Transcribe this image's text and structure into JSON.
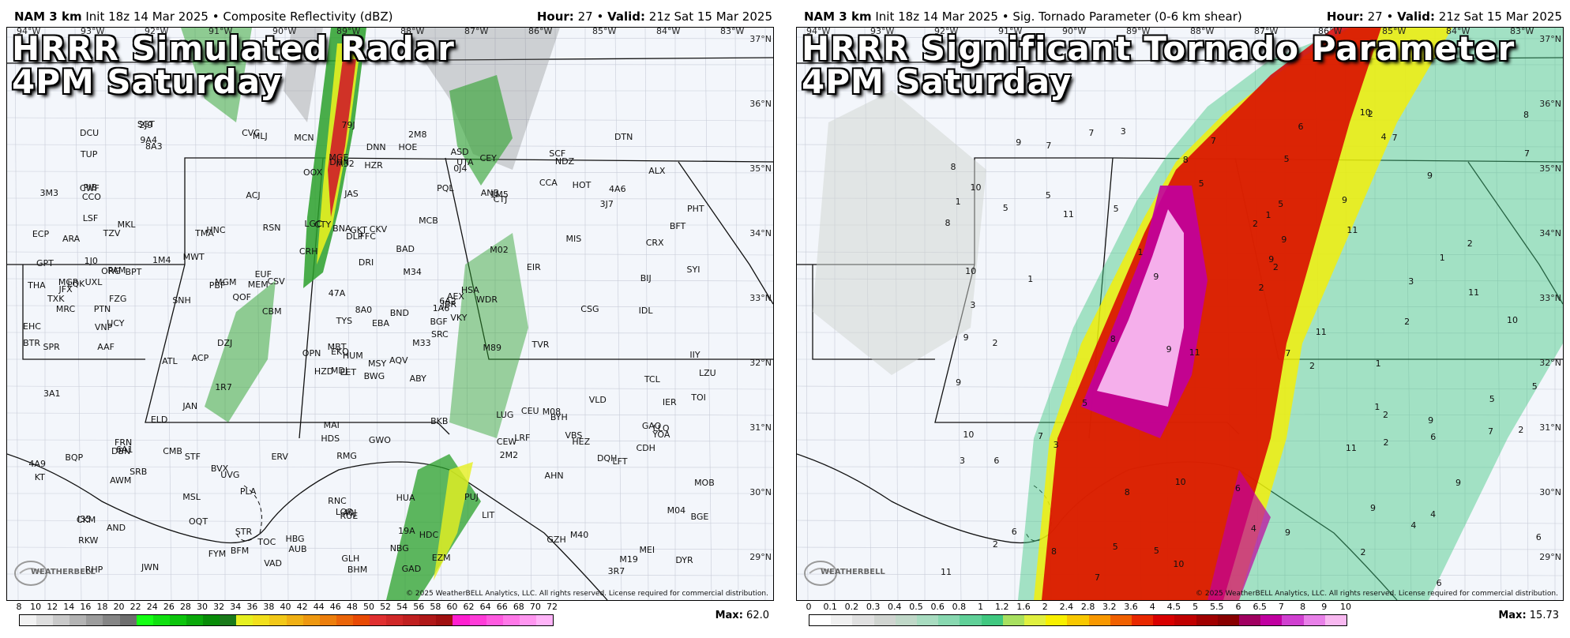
{
  "panels": [
    {
      "header": {
        "model": "NAM 3 km",
        "init": "Init 18z 14 Mar 2025",
        "product": "Composite Reflectivity (dBZ)",
        "hour_label": "Hour",
        "hour": "27",
        "valid_label": "Valid",
        "valid": "21z Sat 15 Mar 2025"
      },
      "title_line1": "HRRR Simulated Radar",
      "title_line2": "4PM Saturday",
      "copyright": "© 2025 WeatherBELL Analytics, LLC. All rights reserved. License required for commercial distribution.",
      "logo": "WEATHERBELL",
      "colorbar": {
        "ticks": [
          "8",
          "10",
          "12",
          "14",
          "16",
          "18",
          "20",
          "22",
          "24",
          "26",
          "28",
          "30",
          "32",
          "34",
          "36",
          "38",
          "40",
          "42",
          "44",
          "46",
          "48",
          "50",
          "52",
          "54",
          "56",
          "58",
          "60",
          "62",
          "64",
          "66",
          "68",
          "70",
          "72"
        ],
        "colors": [
          "#f2f2f2",
          "#dedede",
          "#c9c9c9",
          "#b3b3b3",
          "#9c9c9c",
          "#858585",
          "#6e6e6e",
          "#14ff14",
          "#10e010",
          "#0cc40c",
          "#0aa80a",
          "#088c08",
          "#1a7a1a",
          "#e6f020",
          "#f2e01c",
          "#f2c818",
          "#f0b014",
          "#ee9810",
          "#ec7e0c",
          "#ea6408",
          "#e84a04",
          "#e03030",
          "#d02828",
          "#c02020",
          "#b01818",
          "#a01010",
          "#ff1fd0",
          "#ff3cd8",
          "#ff5ae0",
          "#ff78e8",
          "#ff96f0",
          "#ffb4f8"
        ]
      },
      "max_label": "Max",
      "max_value": "62.0"
    },
    {
      "header": {
        "model": "NAM 3 km",
        "init": "Init 18z 14 Mar 2025",
        "product": "Sig. Tornado Parameter (0-6 km shear)",
        "hour_label": "Hour",
        "hour": "27",
        "valid_label": "Valid",
        "valid": "21z Sat 15 Mar 2025"
      },
      "title_line1": "HRRR Significant Tornado Parameter",
      "title_line2": "4PM Saturday",
      "copyright": "© 2025 WeatherBELL Analytics, LLC. All rights reserved. License required for commercial distribution.",
      "logo": "WEATHERBELL",
      "colorbar": {
        "ticks": [
          "0",
          "0.1",
          "0.2",
          "0.3",
          "0.4",
          "0.5",
          "0.6",
          "0.8",
          "1",
          "1.2",
          "1.6",
          "2",
          "2.4",
          "2.8",
          "3.2",
          "3.6",
          "4",
          "4.5",
          "5",
          "5.5",
          "6",
          "6.5",
          "7",
          "8",
          "9",
          "10"
        ],
        "colors": [
          "#ffffff",
          "#f0f0f0",
          "#e0e0e0",
          "#d0d4d0",
          "#c0d8c8",
          "#a8dcc0",
          "#88d8b0",
          "#60d098",
          "#40c880",
          "#a8e060",
          "#e0f040",
          "#f8f000",
          "#f8c800",
          "#f89800",
          "#f06000",
          "#e82800",
          "#d80000",
          "#c00000",
          "#a00000",
          "#880000",
          "#a00060",
          "#c000a0",
          "#d040d0",
          "#e880e8",
          "#f8b8f0"
        ]
      },
      "max_label": "Max",
      "max_value": "15.73"
    }
  ],
  "lon_labels": [
    "94°W",
    "93°W",
    "92°W",
    "91°W",
    "90°W",
    "89°W",
    "88°W",
    "87°W",
    "86°W",
    "85°W",
    "84°W",
    "83°W"
  ],
  "lat_labels": [
    "37°N",
    "36°N",
    "35°N",
    "34°N",
    "33°N",
    "32°N",
    "31°N",
    "30°N",
    "29°N"
  ],
  "stations_left": [
    "BWG",
    "TZV",
    "EKQ",
    "I35",
    "1A6",
    "UVG",
    "CEY",
    "CKV",
    "1M5",
    "M33",
    "8A3",
    "DYR",
    "UCY",
    "PHT",
    "HZD",
    "M02",
    "JWN",
    "BNA",
    "M34",
    "SRB",
    "CSV",
    "RKW",
    "OQT",
    "GKT",
    "JBR",
    "BYH",
    "MKL",
    "M32",
    "MRC",
    "LUG",
    "SYI",
    "MBT",
    "RNC",
    "TYS",
    "HNC",
    "CCA",
    "BVX",
    "M19",
    "M04",
    "M08",
    "2M8",
    "MEM",
    "SNH",
    "2M2",
    "FYM",
    "THA",
    "BGF",
    "RHP",
    "RUE",
    "SRC",
    "AWM",
    "CRX",
    "3M3",
    "LRF",
    "LIT",
    "MSL",
    "9A4",
    "DCU",
    "HUA",
    "4A6",
    "DNN",
    "DZJ",
    "LQK",
    "MWT",
    "HOT",
    "SGT",
    "UTA",
    "OOX",
    "8A0",
    "4A9",
    "RMG",
    "TOC",
    "CEU",
    "PBF",
    "CKM",
    "TUP",
    "1M4",
    "3A1",
    "47A",
    "19A",
    "BND",
    "AND",
    "M89",
    "LLQ",
    "GLH",
    "IDL",
    "GWO",
    "M40",
    "GAD",
    "PUJ",
    "MGE",
    "LZU",
    "WDR",
    "AHN",
    "EBA",
    "CDH",
    "JFX",
    "BHM",
    "ANB",
    "CTJ",
    "ATL",
    "CVC",
    "IIY",
    "TXK",
    "ELD",
    "STF",
    "STR",
    "6A2",
    "3J7",
    "CBM",
    "TCL",
    "CCO",
    "FFC",
    "OPN",
    "MLJ",
    "BQP",
    "EET",
    "ALX",
    "LGC",
    "MCN",
    "DBN",
    "DTN",
    "BAD",
    "RSN",
    "TVR",
    "JAN",
    "MEI",
    "AUB",
    "CSG",
    "LSF",
    "6A1",
    "EZM",
    "MGM",
    "ACJ",
    "IER",
    "HEZ",
    "1R7",
    "FRN",
    "TOI",
    "EUF",
    "ABY",
    "FZG",
    "DQH",
    "AQV",
    "AEX",
    "PIB",
    "HBG",
    "GZH",
    "LOR",
    "DHN",
    "BIJ",
    "TMA",
    "MGR",
    "VAD",
    "VLD",
    "HOE",
    "JAS",
    "DRI",
    "ACP",
    "MCB",
    "BKB",
    "HZR",
    "BTR",
    "79J",
    "0J4",
    "1J0",
    "MAI",
    "BGE",
    "2J9",
    "3R7",
    "LFT",
    "HDC",
    "GPT",
    "ASD",
    "HSA",
    "BFM",
    "PQL",
    "CEW",
    "ECP",
    "PAM",
    "ARA",
    "MSY",
    "NBG",
    "UXL",
    "CWF",
    "BPT",
    "ORG",
    "PTN",
    "PLA",
    "HUM",
    "GAO",
    "ERV",
    "DLP",
    "MIS",
    "VKY",
    "40J",
    "AAF",
    "CTY",
    "VBS",
    "CMB",
    "VNP",
    "SCF",
    "CRH",
    "EHC",
    "EIR",
    "SPR",
    "MDJ",
    "KT",
    "HDS",
    "NDZ",
    "MOB",
    "BFT",
    "QOF",
    "YOA"
  ],
  "stp_numbers": [
    "1",
    "2",
    "3",
    "4",
    "5",
    "6",
    "7",
    "8",
    "9",
    "10",
    "11"
  ]
}
